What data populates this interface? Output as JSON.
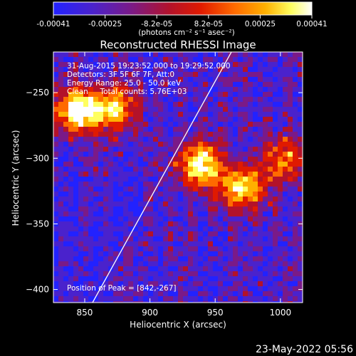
{
  "colorbar": {
    "ticks": [
      "-0.00041",
      "-0.00025",
      "-8.2e-05",
      "8.2e-05",
      "0.00025",
      "0.00041"
    ],
    "unit_label": "(photons cm⁻² s⁻¹ asec⁻²)",
    "colormap": [
      "#2222ff",
      "#4a22cc",
      "#7a1a88",
      "#b3122a",
      "#e01a00",
      "#ff6a00",
      "#ffb000",
      "#ffff60",
      "#ffffff"
    ]
  },
  "image": {
    "title": "Reconstructed RHESSI Image",
    "info_lines": [
      "31-Aug-2015 19:23:52.000 to 19:29:52.000",
      "Detectors: 3F 5F 6F 7F, Att:0",
      "Energy Range: 25.0 - 50.0 keV",
      "Clean     Total counts: 5.76E+03"
    ],
    "peak_label": "Position of Peak = [842,-267]",
    "xlabel": "Heliocentric X (arcsec)",
    "ylabel": "Heliocentric Y (arcsec)",
    "xticks": [
      "850",
      "900",
      "950",
      "1000"
    ],
    "yticks": [
      "-250",
      "-300",
      "-350",
      "-400"
    ],
    "xrange": [
      826,
      1017
    ],
    "yrange": [
      -219,
      -410
    ],
    "sources": [
      {
        "x": 845,
        "y": -264,
        "intensity": 0.95
      },
      {
        "x": 872,
        "y": -262,
        "intensity": 0.7
      },
      {
        "x": 938,
        "y": -305,
        "intensity": 0.85
      },
      {
        "x": 970,
        "y": -322,
        "intensity": 0.8
      },
      {
        "x": 1005,
        "y": -300,
        "intensity": 0.55
      }
    ]
  },
  "footer": {
    "date": "23-May-2022 05:56"
  }
}
